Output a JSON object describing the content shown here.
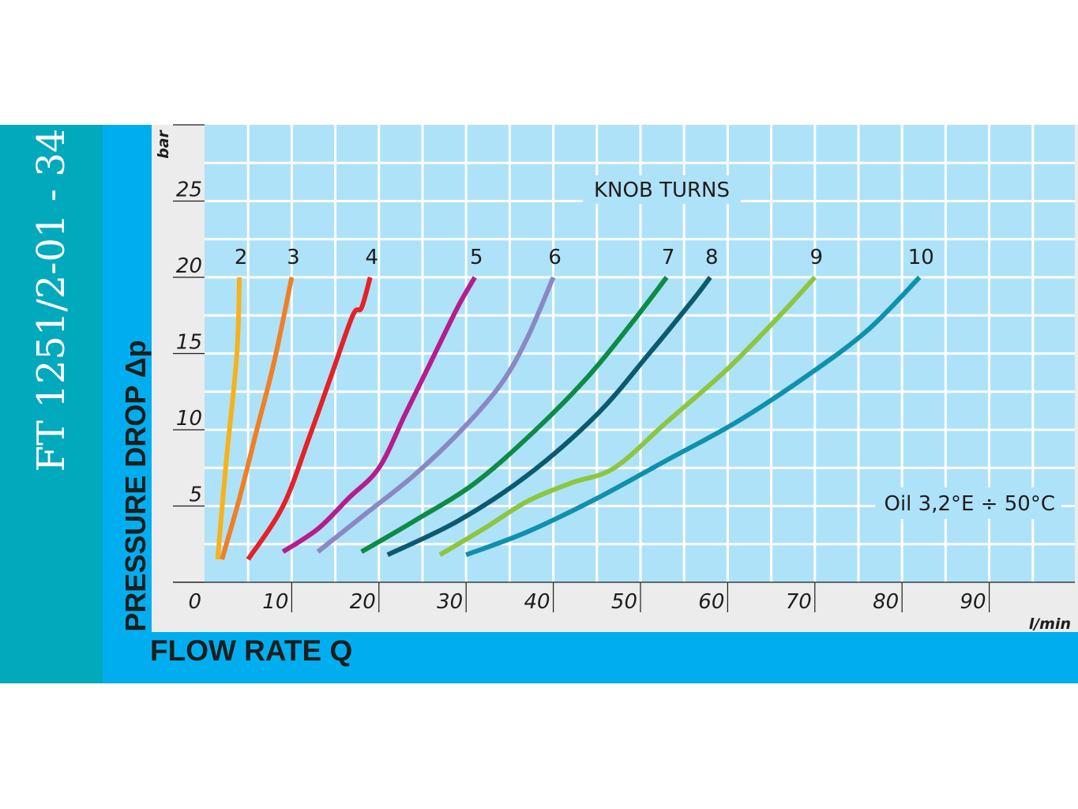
{
  "doc": {
    "side_title": "FT 1251/2-01 - 34",
    "ylabel": "PRESSURE DROP Δp",
    "xlabel": "FLOW RATE Q",
    "y_unit": "bar",
    "x_unit": "l/min",
    "legend_title": "KNOB TURNS",
    "note": "Oil 3,2°E ÷ 50°C"
  },
  "colors": {
    "side_bar": "#00a9bc",
    "frame": "#00aeef",
    "plot_bg": "#aee2f9",
    "grid": "#ffffff",
    "axis_bg": "#ececec",
    "text": "#1d1d1b"
  },
  "chart_data": {
    "type": "line",
    "xlabel": "FLOW RATE Q",
    "ylabel": "PRESSURE DROP Δp",
    "x_unit": "l/min",
    "y_unit": "bar",
    "xlim": [
      -10,
      100
    ],
    "ylim": [
      -2,
      28
    ],
    "x_ticks": [
      "0",
      "10",
      "20",
      "30",
      "40",
      "50",
      "60",
      "70",
      "80",
      "90"
    ],
    "y_ticks": [
      "5",
      "10",
      "15",
      "20",
      "25"
    ],
    "grid": true,
    "legend_title": "KNOB TURNS",
    "annotation": "Oil 3,2°E ÷ 50°C",
    "series": [
      {
        "name": "2",
        "color": "#f7b21a",
        "points": [
          [
            1.5,
            1.5
          ],
          [
            2.5,
            8
          ],
          [
            3.7,
            14.9
          ],
          [
            4,
            20
          ]
        ]
      },
      {
        "name": "3",
        "color": "#f07f26",
        "points": [
          [
            2,
            1.5
          ],
          [
            4,
            5.5
          ],
          [
            6,
            10
          ],
          [
            8,
            14.5
          ],
          [
            10,
            20
          ]
        ]
      },
      {
        "name": "4",
        "color": "#e52127",
        "points": [
          [
            5,
            1.5
          ],
          [
            9,
            5
          ],
          [
            12,
            9.5
          ],
          [
            14.5,
            13.5
          ],
          [
            17,
            17.5
          ],
          [
            18,
            18
          ],
          [
            19,
            20
          ]
        ]
      },
      {
        "name": "5",
        "color": "#b51d8c",
        "points": [
          [
            9,
            2
          ],
          [
            13,
            3.5
          ],
          [
            16.5,
            5.5
          ],
          [
            20,
            7.5
          ],
          [
            23,
            11
          ],
          [
            26,
            14.5
          ],
          [
            29,
            18
          ],
          [
            31,
            20
          ]
        ]
      },
      {
        "name": "6",
        "color": "#8a88c4",
        "points": [
          [
            13,
            2
          ],
          [
            18.5,
            4.5
          ],
          [
            24,
            7
          ],
          [
            29.5,
            10
          ],
          [
            34,
            13
          ],
          [
            37,
            16
          ],
          [
            40,
            20
          ]
        ]
      },
      {
        "name": "7",
        "color": "#0d8b47",
        "points": [
          [
            18,
            2
          ],
          [
            24,
            4
          ],
          [
            31,
            6.5
          ],
          [
            38,
            10
          ],
          [
            44,
            13.5
          ],
          [
            49,
            17
          ],
          [
            53,
            20
          ]
        ]
      },
      {
        "name": "8",
        "color": "#0b5a6f",
        "points": [
          [
            21,
            1.8
          ],
          [
            29,
            4
          ],
          [
            37,
            7
          ],
          [
            45,
            11
          ],
          [
            51,
            15
          ],
          [
            56,
            18.5
          ],
          [
            58,
            20
          ]
        ]
      },
      {
        "name": "9",
        "color": "#8cc640",
        "points": [
          [
            27,
            1.8
          ],
          [
            32,
            3.5
          ],
          [
            37,
            5.3
          ],
          [
            42,
            6.5
          ],
          [
            47,
            7.5
          ],
          [
            53,
            10.5
          ],
          [
            60,
            14
          ],
          [
            66,
            17.5
          ],
          [
            70,
            20
          ]
        ]
      },
      {
        "name": "10",
        "color": "#0f91ab",
        "points": [
          [
            30,
            1.8
          ],
          [
            37,
            3.3
          ],
          [
            45,
            5.5
          ],
          [
            53,
            8
          ],
          [
            61,
            10.5
          ],
          [
            69,
            13.5
          ],
          [
            76,
            16.5
          ],
          [
            82,
            20
          ]
        ]
      }
    ]
  }
}
